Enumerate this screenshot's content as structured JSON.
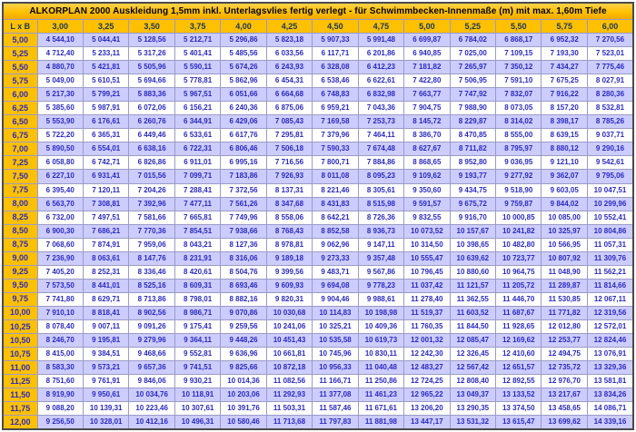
{
  "title": "ALKORPLAN 2000 Auskleidung 1,5mm inkl. Unterlagsvlies fertig verlegt  -  für Schwimmbecken-Innenmaße (m) mit max. 1,60m Tiefe",
  "table": {
    "corner_label": "L x B",
    "column_headers": [
      "3,00",
      "3,25",
      "3,50",
      "3,75",
      "4,00",
      "4,25",
      "4,50",
      "4,75",
      "5,00",
      "5,25",
      "5,50",
      "5,75",
      "6,00"
    ],
    "rows": [
      {
        "label": "5,00",
        "values": [
          "4 544,10",
          "5 044,41",
          "5 128,56",
          "5 212,71",
          "5 296,86",
          "5 823,18",
          "5 907,33",
          "5 991,48",
          "6 699,87",
          "6 784,02",
          "6 868,17",
          "6 952,32",
          "7 270,56"
        ]
      },
      {
        "label": "5,25",
        "values": [
          "4 712,40",
          "5 233,11",
          "5 317,26",
          "5 401,41",
          "5 485,56",
          "6 033,56",
          "6 117,71",
          "6 201,86",
          "6 940,85",
          "7 025,00",
          "7 109,15",
          "7 193,30",
          "7 523,01"
        ]
      },
      {
        "label": "5,50",
        "values": [
          "4 880,70",
          "5 421,81",
          "5 505,96",
          "5 590,11",
          "5 674,26",
          "6 243,93",
          "6 328,08",
          "6 412,23",
          "7 181,82",
          "7 265,97",
          "7 350,12",
          "7 434,27",
          "7 775,46"
        ]
      },
      {
        "label": "5,75",
        "values": [
          "5 049,00",
          "5 610,51",
          "5 694,66",
          "5 778,81",
          "5 862,96",
          "6 454,31",
          "6 538,46",
          "6 622,61",
          "7 422,80",
          "7 506,95",
          "7 591,10",
          "7 675,25",
          "8 027,91"
        ]
      },
      {
        "label": "6,00",
        "values": [
          "5 217,30",
          "5 799,21",
          "5 883,36",
          "5 967,51",
          "6 051,66",
          "6 664,68",
          "6 748,83",
          "6 832,98",
          "7 663,77",
          "7 747,92",
          "7 832,07",
          "7 916,22",
          "8 280,36"
        ]
      },
      {
        "label": "6,25",
        "values": [
          "5 385,60",
          "5 987,91",
          "6 072,06",
          "6 156,21",
          "6 240,36",
          "6 875,06",
          "6 959,21",
          "7 043,36",
          "7 904,75",
          "7 988,90",
          "8 073,05",
          "8 157,20",
          "8 532,81"
        ]
      },
      {
        "label": "6,50",
        "values": [
          "5 553,90",
          "6 176,61",
          "6 260,76",
          "6 344,91",
          "6 429,06",
          "7 085,43",
          "7 169,58",
          "7 253,73",
          "8 145,72",
          "8 229,87",
          "8 314,02",
          "8 398,17",
          "8 785,26"
        ]
      },
      {
        "label": "6,75",
        "values": [
          "5 722,20",
          "6 365,31",
          "6 449,46",
          "6 533,61",
          "6 617,76",
          "7 295,81",
          "7 379,96",
          "7 464,11",
          "8 386,70",
          "8 470,85",
          "8 555,00",
          "8 639,15",
          "9 037,71"
        ]
      },
      {
        "label": "7,00",
        "values": [
          "5 890,50",
          "6 554,01",
          "6 638,16",
          "6 722,31",
          "6 806,46",
          "7 506,18",
          "7 590,33",
          "7 674,48",
          "8 627,67",
          "8 711,82",
          "8 795,97",
          "8 880,12",
          "9 290,16"
        ]
      },
      {
        "label": "7,25",
        "values": [
          "6 058,80",
          "6 742,71",
          "6 826,86",
          "6 911,01",
          "6 995,16",
          "7 716,56",
          "7 800,71",
          "7 884,86",
          "8 868,65",
          "8 952,80",
          "9 036,95",
          "9 121,10",
          "9 542,61"
        ]
      },
      {
        "label": "7,50",
        "values": [
          "6 227,10",
          "6 931,41",
          "7 015,56",
          "7 099,71",
          "7 183,86",
          "7 926,93",
          "8 011,08",
          "8 095,23",
          "9 109,62",
          "9 193,77",
          "9 277,92",
          "9 362,07",
          "9 795,06"
        ]
      },
      {
        "label": "7,75",
        "values": [
          "6 395,40",
          "7 120,11",
          "7 204,26",
          "7 288,41",
          "7 372,56",
          "8 137,31",
          "8 221,46",
          "8 305,61",
          "9 350,60",
          "9 434,75",
          "9 518,90",
          "9 603,05",
          "10 047,51"
        ]
      },
      {
        "label": "8,00",
        "values": [
          "6 563,70",
          "7 308,81",
          "7 392,96",
          "7 477,11",
          "7 561,26",
          "8 347,68",
          "8 431,83",
          "8 515,98",
          "9 591,57",
          "9 675,72",
          "9 759,87",
          "9 844,02",
          "10 299,96"
        ]
      },
      {
        "label": "8,25",
        "values": [
          "6 732,00",
          "7 497,51",
          "7 581,66",
          "7 665,81",
          "7 749,96",
          "8 558,06",
          "8 642,21",
          "8 726,36",
          "9 832,55",
          "9 916,70",
          "10 000,85",
          "10 085,00",
          "10 552,41"
        ]
      },
      {
        "label": "8,50",
        "values": [
          "6 900,30",
          "7 686,21",
          "7 770,36",
          "7 854,51",
          "7 938,66",
          "8 768,43",
          "8 852,58",
          "8 936,73",
          "10 073,52",
          "10 157,67",
          "10 241,82",
          "10 325,97",
          "10 804,86"
        ]
      },
      {
        "label": "8,75",
        "values": [
          "7 068,60",
          "7 874,91",
          "7 959,06",
          "8 043,21",
          "8 127,36",
          "8 978,81",
          "9 062,96",
          "9 147,11",
          "10 314,50",
          "10 398,65",
          "10 482,80",
          "10 566,95",
          "11 057,31"
        ]
      },
      {
        "label": "9,00",
        "values": [
          "7 236,90",
          "8 063,61",
          "8 147,76",
          "8 231,91",
          "8 316,06",
          "9 189,18",
          "9 273,33",
          "9 357,48",
          "10 555,47",
          "10 639,62",
          "10 723,77",
          "10 807,92",
          "11 309,76"
        ]
      },
      {
        "label": "9,25",
        "values": [
          "7 405,20",
          "8 252,31",
          "8 336,46",
          "8 420,61",
          "8 504,76",
          "9 399,56",
          "9 483,71",
          "9 567,86",
          "10 796,45",
          "10 880,60",
          "10 964,75",
          "11 048,90",
          "11 562,21"
        ]
      },
      {
        "label": "9,50",
        "values": [
          "7 573,50",
          "8 441,01",
          "8 525,16",
          "8 609,31",
          "8 693,46",
          "9 609,93",
          "9 694,08",
          "9 778,23",
          "11 037,42",
          "11 121,57",
          "11 205,72",
          "11 289,87",
          "11 814,66"
        ]
      },
      {
        "label": "9,75",
        "values": [
          "7 741,80",
          "8 629,71",
          "8 713,86",
          "8 798,01",
          "8 882,16",
          "9 820,31",
          "9 904,46",
          "9 988,61",
          "11 278,40",
          "11 362,55",
          "11 446,70",
          "11 530,85",
          "12 067,11"
        ]
      },
      {
        "label": "10,00",
        "values": [
          "7 910,10",
          "8 818,41",
          "8 902,56",
          "8 986,71",
          "9 070,86",
          "10 030,68",
          "10 114,83",
          "10 198,98",
          "11 519,37",
          "11 603,52",
          "11 687,67",
          "11 771,82",
          "12 319,56"
        ]
      },
      {
        "label": "10,25",
        "values": [
          "8 078,40",
          "9 007,11",
          "9 091,26",
          "9 175,41",
          "9 259,56",
          "10 241,06",
          "10 325,21",
          "10 409,36",
          "11 760,35",
          "11 844,50",
          "11 928,65",
          "12 012,80",
          "12 572,01"
        ]
      },
      {
        "label": "10,50",
        "values": [
          "8 246,70",
          "9 195,81",
          "9 279,96",
          "9 364,11",
          "9 448,26",
          "10 451,43",
          "10 535,58",
          "10 619,73",
          "12 001,32",
          "12 085,47",
          "12 169,62",
          "12 253,77",
          "12 824,46"
        ]
      },
      {
        "label": "10,75",
        "values": [
          "8 415,00",
          "9 384,51",
          "9 468,66",
          "9 552,81",
          "9 636,96",
          "10 661,81",
          "10 745,96",
          "10 830,11",
          "12 242,30",
          "12 326,45",
          "12 410,60",
          "12 494,75",
          "13 076,91"
        ]
      },
      {
        "label": "11,00",
        "values": [
          "8 583,30",
          "9 573,21",
          "9 657,36",
          "9 741,51",
          "9 825,66",
          "10 872,18",
          "10 956,33",
          "11 040,48",
          "12 483,27",
          "12 567,42",
          "12 651,57",
          "12 735,72",
          "13 329,36"
        ]
      },
      {
        "label": "11,25",
        "values": [
          "8 751,60",
          "9 761,91",
          "9 846,06",
          "9 930,21",
          "10 014,36",
          "11 082,56",
          "11 166,71",
          "11 250,86",
          "12 724,25",
          "12 808,40",
          "12 892,55",
          "12 976,70",
          "13 581,81"
        ]
      },
      {
        "label": "11,50",
        "values": [
          "8 919,90",
          "9 950,61",
          "10 034,76",
          "10 118,91",
          "10 203,06",
          "11 292,93",
          "11 377,08",
          "11 461,23",
          "12 965,22",
          "13 049,37",
          "13 133,52",
          "13 217,67",
          "13 834,26"
        ]
      },
      {
        "label": "11,75",
        "values": [
          "9 088,20",
          "10 139,31",
          "10 223,46",
          "10 307,61",
          "10 391,76",
          "11 503,31",
          "11 587,46",
          "11 671,61",
          "13 206,20",
          "13 290,35",
          "13 374,50",
          "13 458,65",
          "14 086,71"
        ]
      },
      {
        "label": "12,00",
        "values": [
          "9 256,50",
          "10 328,01",
          "10 412,16",
          "10 496,31",
          "10 580,46",
          "11 713,68",
          "11 797,83",
          "11 881,98",
          "13 447,17",
          "13 531,32",
          "13 615,47",
          "13 699,62",
          "14 339,16"
        ]
      }
    ]
  },
  "colors": {
    "header_bg": "#FFC000",
    "band_row_bg": "#CCCCFF",
    "plain_row_bg": "#FFFFFF",
    "value_text": "#2A2AC0",
    "header_text": "#17375E",
    "title_text": "#000000",
    "grid_line": "#9B9BC8",
    "outer_border": "#4A4A4A"
  }
}
